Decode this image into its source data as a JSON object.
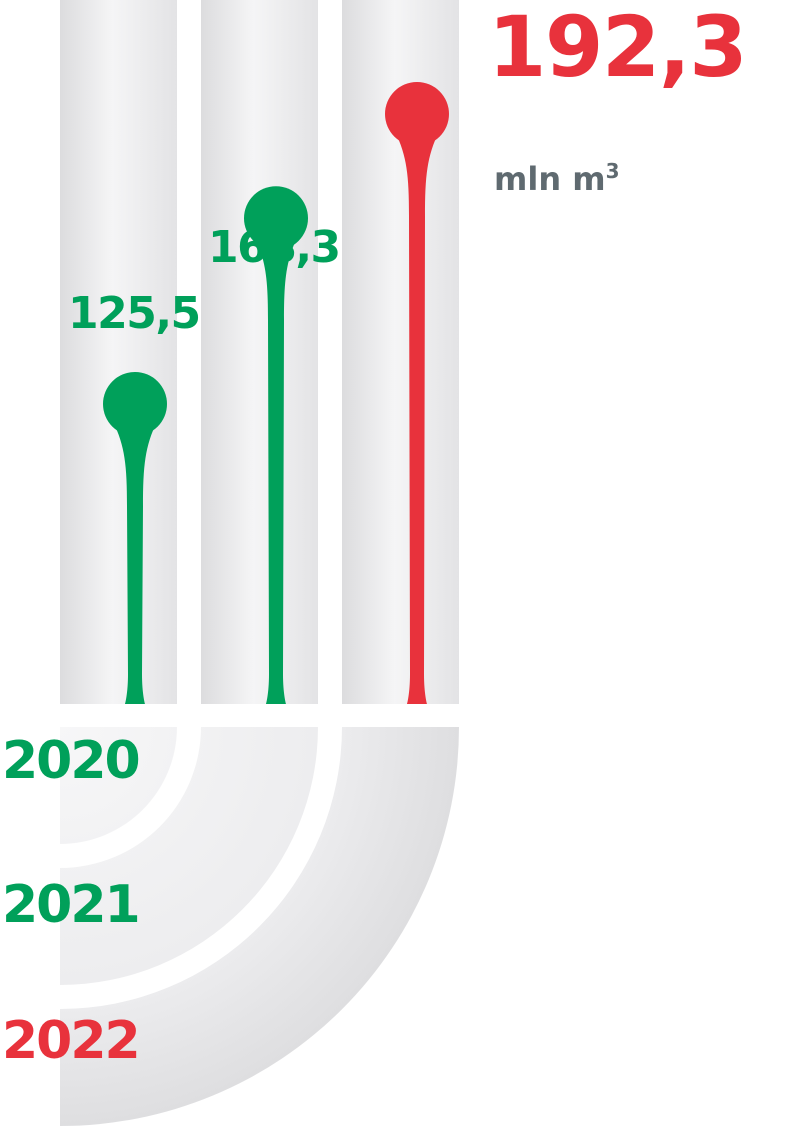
{
  "chart_data": {
    "type": "bar",
    "categories": [
      "2020",
      "2021",
      "2022"
    ],
    "values": [
      125.5,
      168.3,
      192.3
    ],
    "value_labels": [
      "125,5",
      "168,3",
      "192,3"
    ],
    "unit": "mln m",
    "unit_superscript": "3",
    "title": "",
    "xlabel": "",
    "ylabel": "",
    "ylim": [
      0,
      200
    ],
    "grid": false,
    "legend": "none",
    "colors": {
      "previous": "#00a05a",
      "current": "#e8323c",
      "track": "#ebebec",
      "unit_text": "#5f6a70"
    }
  }
}
